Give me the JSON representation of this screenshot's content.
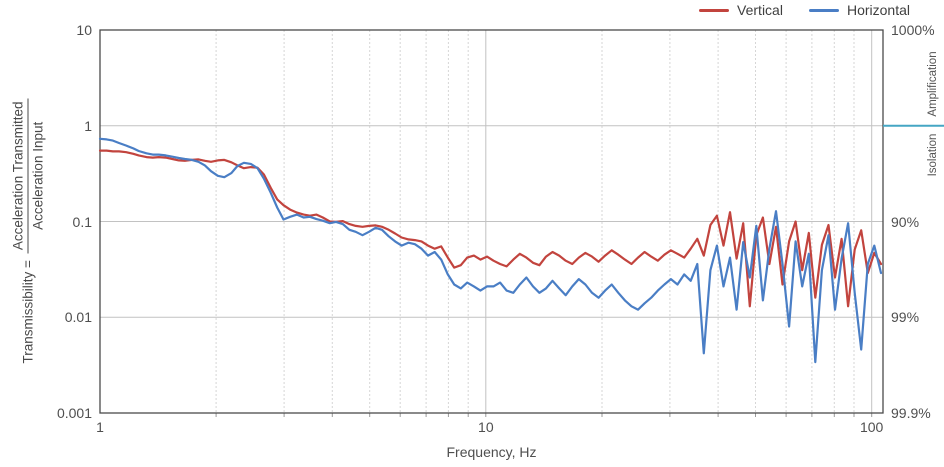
{
  "chart_data": {
    "type": "line",
    "title": "",
    "xlabel": "Frequency, Hz",
    "ylabel": {
      "prefix": "Transmissibility =",
      "numerator": "Acceleration Transmitted",
      "denominator": "Acceleration Input"
    },
    "x_scale": "log",
    "y_scale": "log",
    "xlim": [
      1,
      107
    ],
    "ylim": [
      0.001,
      10
    ],
    "grid": true,
    "legend_position": "top-right",
    "x_ticks": [
      {
        "value": 1,
        "label": "1"
      },
      {
        "value": 10,
        "label": "10"
      },
      {
        "value": 100,
        "label": "100"
      }
    ],
    "x_minor_gridlines": [
      2,
      3,
      4,
      5,
      6,
      7,
      8,
      9,
      20,
      30,
      40,
      50,
      60,
      70,
      80,
      90
    ],
    "y_ticks_left": [
      {
        "value": 10,
        "label": "10"
      },
      {
        "value": 1,
        "label": "1"
      },
      {
        "value": 0.1,
        "label": "0.1"
      },
      {
        "value": 0.01,
        "label": "0.01"
      },
      {
        "value": 0.001,
        "label": "0.001"
      }
    ],
    "y_ticks_right": [
      {
        "value": 10,
        "label": "1000%"
      },
      {
        "value": 0.1,
        "label": "90%"
      },
      {
        "value": 0.01,
        "label": "99%"
      },
      {
        "value": 0.001,
        "label": "99.9%"
      }
    ],
    "y_gridlines": [
      1,
      0.1,
      0.01
    ],
    "right_margin": {
      "amplification_label": "Amplification",
      "isolation_label": "Isolation",
      "divider_value": 1,
      "divider_color": "#45A6C4"
    },
    "x": [
      1,
      1.04,
      1.08,
      1.12,
      1.17,
      1.22,
      1.26,
      1.32,
      1.37,
      1.42,
      1.48,
      1.54,
      1.6,
      1.66,
      1.73,
      1.8,
      1.87,
      1.94,
      2.02,
      2.1,
      2.19,
      2.27,
      2.36,
      2.46,
      2.56,
      2.66,
      2.77,
      2.88,
      2.99,
      3.11,
      3.24,
      3.37,
      3.5,
      3.64,
      3.78,
      3.94,
      4.09,
      4.26,
      4.43,
      4.6,
      4.79,
      4.98,
      5.18,
      5.38,
      5.6,
      5.82,
      6.05,
      6.3,
      6.55,
      6.81,
      7.08,
      7.37,
      7.66,
      7.97,
      8.28,
      8.61,
      8.95,
      9.31,
      9.68,
      10.07,
      10.47,
      10.89,
      11.32,
      11.78,
      12.25,
      12.74,
      13.25,
      13.77,
      14.32,
      14.89,
      15.49,
      16.11,
      16.75,
      17.42,
      18.12,
      18.84,
      19.6,
      20.38,
      21.2,
      22.05,
      22.93,
      23.85,
      24.8,
      25.79,
      26.83,
      27.9,
      29.02,
      30.18,
      31.39,
      32.66,
      33.96,
      35.32,
      36.73,
      38.19,
      39.72,
      41.3,
      42.95,
      44.67,
      46.45,
      48.31,
      50.24,
      52.25,
      54.33,
      56.49,
      58.75,
      61.1,
      63.53,
      66.07,
      68.71,
      71.45,
      74.3,
      77.27,
      80.35,
      83.56,
      86.9,
      90.36,
      93.97,
      97.72,
      101.6,
      105.7
    ],
    "series": [
      {
        "name": "Vertical",
        "color": "#C2443E",
        "values": [
          0.55,
          0.55,
          0.54,
          0.54,
          0.53,
          0.51,
          0.49,
          0.47,
          0.465,
          0.47,
          0.465,
          0.45,
          0.435,
          0.43,
          0.44,
          0.445,
          0.43,
          0.42,
          0.435,
          0.44,
          0.415,
          0.385,
          0.36,
          0.37,
          0.365,
          0.31,
          0.225,
          0.17,
          0.148,
          0.133,
          0.124,
          0.118,
          0.115,
          0.118,
          0.11,
          0.1,
          0.099,
          0.101,
          0.094,
          0.09,
          0.088,
          0.09,
          0.091,
          0.088,
          0.082,
          0.075,
          0.068,
          0.065,
          0.064,
          0.062,
          0.056,
          0.052,
          0.055,
          0.042,
          0.033,
          0.035,
          0.042,
          0.044,
          0.04,
          0.043,
          0.039,
          0.036,
          0.034,
          0.04,
          0.046,
          0.042,
          0.037,
          0.035,
          0.043,
          0.048,
          0.044,
          0.039,
          0.036,
          0.042,
          0.047,
          0.043,
          0.038,
          0.044,
          0.05,
          0.045,
          0.04,
          0.036,
          0.042,
          0.048,
          0.043,
          0.039,
          0.045,
          0.05,
          0.046,
          0.042,
          0.052,
          0.066,
          0.044,
          0.092,
          0.115,
          0.056,
          0.125,
          0.041,
          0.096,
          0.013,
          0.072,
          0.11,
          0.036,
          0.088,
          0.022,
          0.062,
          0.1,
          0.031,
          0.076,
          0.016,
          0.057,
          0.092,
          0.026,
          0.066,
          0.013,
          0.051,
          0.081,
          0.029,
          0.047,
          0.036
        ]
      },
      {
        "name": "Horizontal",
        "color": "#4A7EC5",
        "values": [
          0.73,
          0.72,
          0.7,
          0.66,
          0.62,
          0.58,
          0.545,
          0.515,
          0.5,
          0.5,
          0.49,
          0.475,
          0.46,
          0.45,
          0.44,
          0.42,
          0.385,
          0.335,
          0.3,
          0.29,
          0.32,
          0.38,
          0.41,
          0.4,
          0.36,
          0.28,
          0.2,
          0.14,
          0.105,
          0.112,
          0.118,
          0.11,
          0.112,
          0.106,
          0.102,
          0.096,
          0.099,
          0.094,
          0.082,
          0.078,
          0.072,
          0.078,
          0.086,
          0.082,
          0.07,
          0.062,
          0.056,
          0.06,
          0.058,
          0.052,
          0.044,
          0.048,
          0.04,
          0.028,
          0.022,
          0.02,
          0.023,
          0.021,
          0.019,
          0.021,
          0.021,
          0.023,
          0.019,
          0.018,
          0.022,
          0.026,
          0.021,
          0.018,
          0.02,
          0.024,
          0.02,
          0.017,
          0.021,
          0.025,
          0.022,
          0.018,
          0.016,
          0.019,
          0.022,
          0.018,
          0.015,
          0.013,
          0.012,
          0.014,
          0.016,
          0.019,
          0.022,
          0.025,
          0.022,
          0.028,
          0.024,
          0.036,
          0.0042,
          0.031,
          0.056,
          0.021,
          0.042,
          0.012,
          0.061,
          0.026,
          0.09,
          0.015,
          0.052,
          0.128,
          0.036,
          0.008,
          0.062,
          0.021,
          0.046,
          0.0034,
          0.031,
          0.072,
          0.012,
          0.041,
          0.096,
          0.018,
          0.0046,
          0.036,
          0.056,
          0.029
        ]
      }
    ]
  }
}
